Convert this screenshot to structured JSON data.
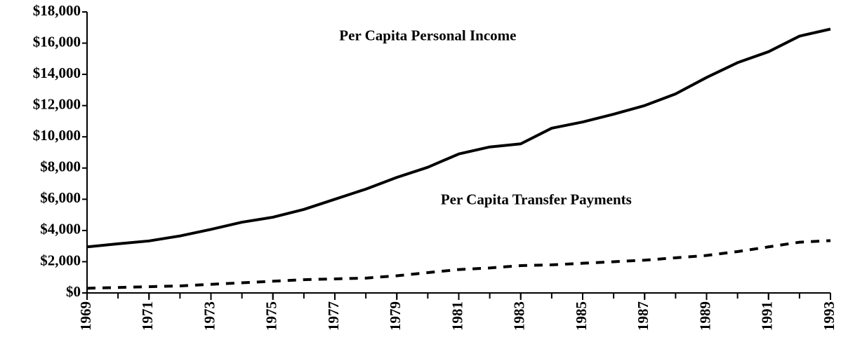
{
  "chart_data": {
    "type": "line",
    "annotations": [
      {
        "text": "Per Capita Personal Income",
        "x": 1980,
        "y": 16400
      },
      {
        "text": "Per Capita Transfer Payments",
        "x": 1983.5,
        "y": 5900
      }
    ],
    "x": [
      1969,
      1970,
      1971,
      1972,
      1973,
      1974,
      1975,
      1976,
      1977,
      1978,
      1979,
      1980,
      1981,
      1982,
      1983,
      1984,
      1985,
      1986,
      1987,
      1988,
      1989,
      1990,
      1991,
      1992,
      1993
    ],
    "series": [
      {
        "color": "#000000",
        "dash": false,
        "values": [
          2950,
          3150,
          3330,
          3650,
          4070,
          4530,
          4850,
          5350,
          6000,
          6650,
          7400,
          8050,
          8900,
          9350,
          9550,
          10550,
          10950,
          11450,
          12000,
          12750,
          13800,
          14750,
          15450,
          16450,
          16900
        ]
      },
      {
        "color": "#000000",
        "dash": true,
        "values": [
          300,
          350,
          400,
          450,
          550,
          650,
          750,
          850,
          900,
          950,
          1100,
          1300,
          1500,
          1600,
          1750,
          1800,
          1900,
          2000,
          2100,
          2250,
          2400,
          2650,
          2950,
          3250,
          3350
        ]
      }
    ],
    "xlim": [
      1969,
      1993
    ],
    "xticks": [
      1969,
      1971,
      1973,
      1975,
      1977,
      1979,
      1981,
      1983,
      1985,
      1987,
      1989,
      1991,
      1993
    ],
    "ylim": [
      0,
      18000
    ],
    "yticks": [
      {
        "value": 0,
        "label": "$0"
      },
      {
        "value": 2000,
        "label": "$2,000"
      },
      {
        "value": 4000,
        "label": "$4,000"
      },
      {
        "value": 6000,
        "label": "$6,000"
      },
      {
        "value": 8000,
        "label": "$8,000"
      },
      {
        "value": 10000,
        "label": "$10,000"
      },
      {
        "value": 12000,
        "label": "$12,000"
      },
      {
        "value": 14000,
        "label": "$14,000"
      },
      {
        "value": 16000,
        "label": "$16,000"
      },
      {
        "value": 18000,
        "label": "$18,000"
      }
    ]
  }
}
